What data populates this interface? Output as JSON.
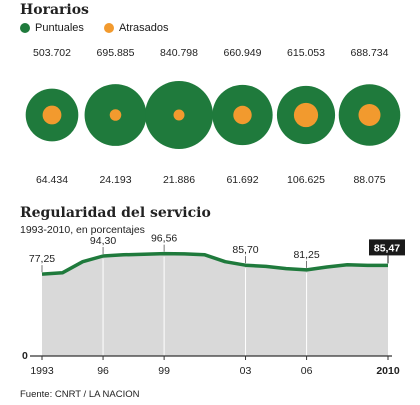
{
  "horarios": {
    "title": "Horarios",
    "legend": [
      {
        "label": "Puntuales",
        "color": "#1f7a3c"
      },
      {
        "label": "Atrasados",
        "color": "#f29a2e"
      }
    ]
  },
  "regularidad": {
    "title": "Regularidad del servicio",
    "subtitle": "1993-2010, en porcentajes"
  },
  "source": "Fuente: CNRT / LA NACION",
  "chart_data": [
    {
      "type": "bubble",
      "title": "Horarios",
      "series": [
        {
          "name": "Puntuales",
          "color": "#1f7a3c",
          "values": [
            503702,
            695885,
            840798,
            660949,
            615053,
            688734
          ],
          "labels": [
            "503.702",
            "695.885",
            "840.798",
            "660.949",
            "615.053",
            "688.734"
          ]
        },
        {
          "name": "Atrasados",
          "color": "#f29a2e",
          "values": [
            64434,
            24193,
            21886,
            61692,
            106625,
            88075
          ],
          "labels": [
            "64.434",
            "24.193",
            "21.886",
            "61.692",
            "106.625",
            "88.075"
          ]
        }
      ]
    },
    {
      "type": "area",
      "title": "Regularidad del servicio",
      "subtitle": "1993-2010, en porcentajes",
      "x": [
        1993,
        1994,
        1995,
        1996,
        1997,
        1998,
        1999,
        2000,
        2001,
        2002,
        2003,
        2004,
        2005,
        2006,
        2007,
        2008,
        2009,
        2010
      ],
      "values": [
        77.25,
        78.5,
        89.0,
        94.3,
        95.5,
        96.0,
        96.56,
        96.3,
        95.5,
        89.0,
        85.7,
        84.5,
        82.5,
        81.25,
        84.0,
        86.0,
        85.5,
        85.47
      ],
      "x_ticks": [
        "1993",
        "96",
        "99",
        "03",
        "06",
        "2010"
      ],
      "x_tick_values": [
        1993,
        1996,
        1999,
        2003,
        2006,
        2010
      ],
      "annotations": [
        {
          "x": 1993,
          "label": "77,25"
        },
        {
          "x": 1996,
          "label": "94,30"
        },
        {
          "x": 1999,
          "label": "96,56"
        },
        {
          "x": 2003,
          "label": "85,70"
        },
        {
          "x": 2006,
          "label": "81,25"
        },
        {
          "x": 2010,
          "label": "85,47",
          "highlight": true
        }
      ],
      "y_tick": "0",
      "ylim": [
        0,
        100
      ],
      "fill_color": "#d9d9d9",
      "line_color": "#1f7a3c",
      "highlight_color": "#1a1a1a"
    }
  ]
}
